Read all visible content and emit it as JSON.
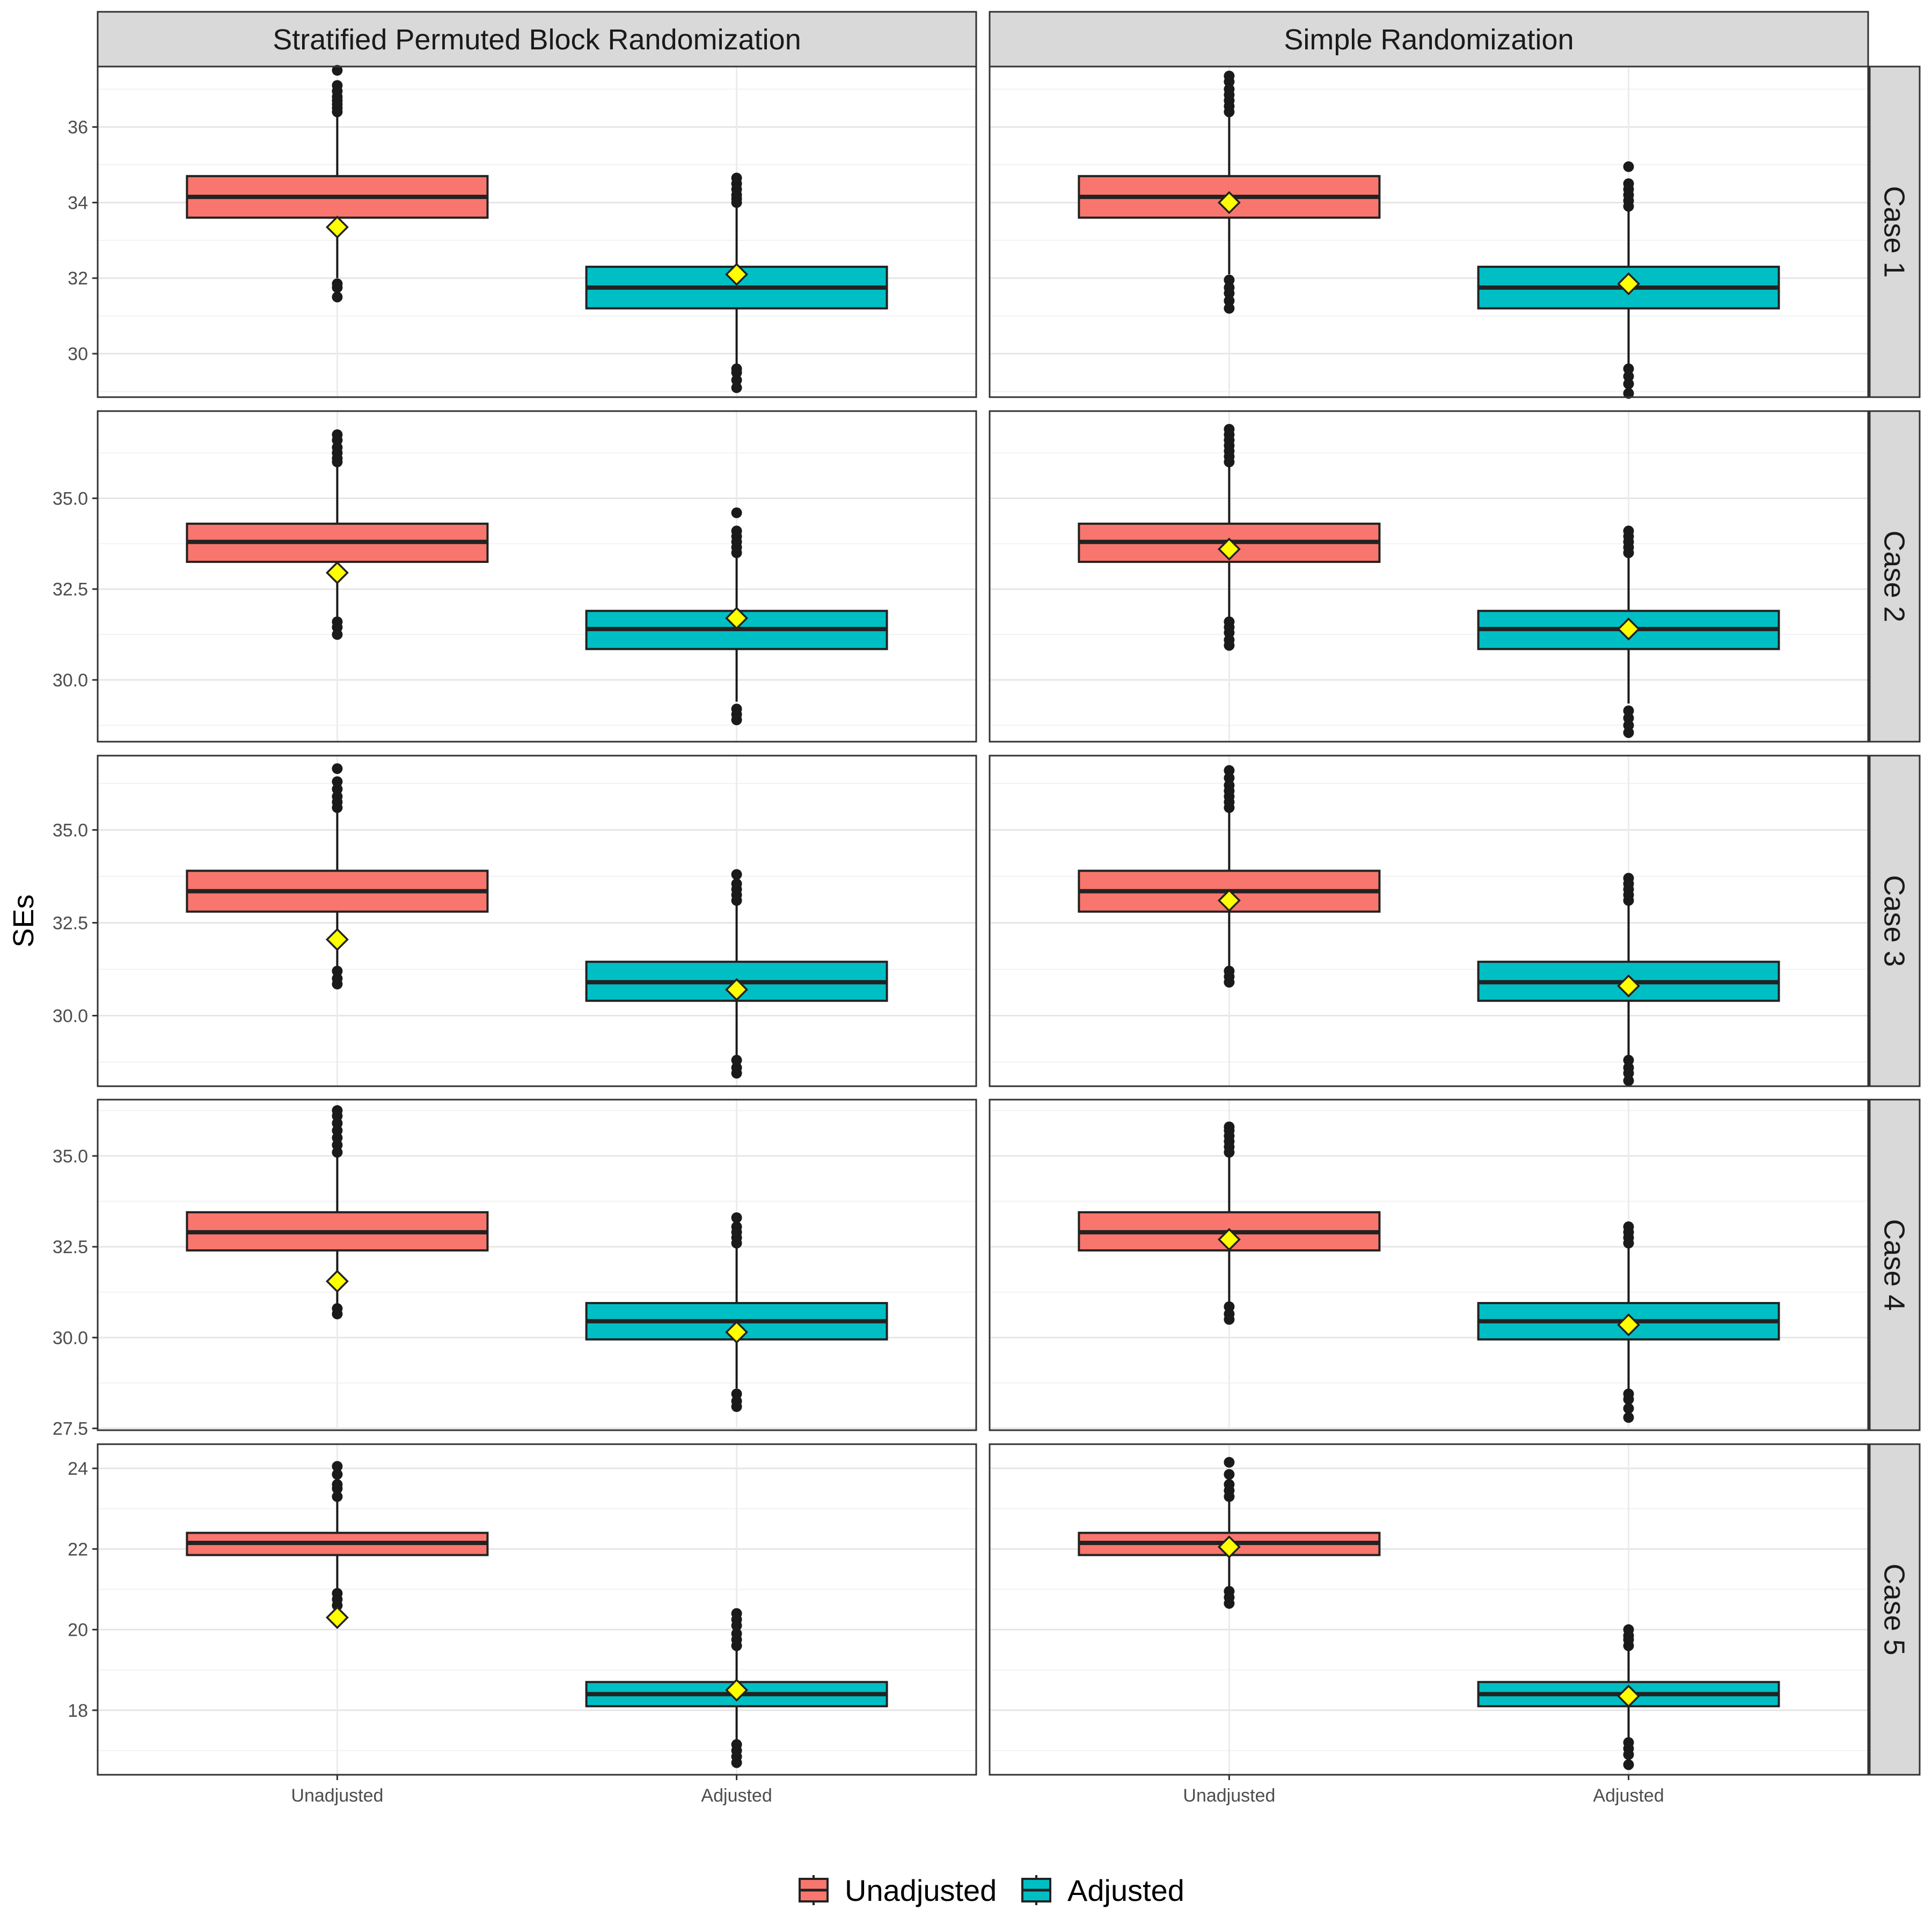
{
  "chart_data": {
    "type": "boxplot",
    "ylabel": "SEs",
    "columns": [
      "Stratified Permuted Block Randomization",
      "Simple Randomization"
    ],
    "rows": [
      "Case 1",
      "Case 2",
      "Case 3",
      "Case 4",
      "Case 5"
    ],
    "categories": [
      "Unadjusted",
      "Adjusted"
    ],
    "legend": {
      "position": "bottom",
      "entries": [
        {
          "label": "Unadjusted",
          "color": "#F8766D"
        },
        {
          "label": "Adjusted",
          "color": "#00BFC4"
        }
      ]
    },
    "colors": {
      "Unadjusted": "#F8766D",
      "Adjusted": "#00BFC4",
      "mean_marker": "#FFFF00"
    },
    "mean_marker": "diamond",
    "grid": true,
    "scales": [
      {
        "ylim": [
          28.85,
          37.6
        ],
        "ticks": [
          30,
          32,
          34,
          36
        ],
        "tick_labels": [
          "30",
          "32",
          "34",
          "36"
        ]
      },
      {
        "ylim": [
          28.3,
          37.4
        ],
        "ticks": [
          30,
          32.5,
          35
        ],
        "tick_labels": [
          "30.0",
          "32.5",
          "35.0"
        ]
      },
      {
        "ylim": [
          28.1,
          37.0
        ],
        "ticks": [
          30,
          32.5,
          35
        ],
        "tick_labels": [
          "30.0",
          "32.5",
          "35.0"
        ]
      },
      {
        "ylim": [
          27.45,
          36.55
        ],
        "ticks": [
          27.5,
          30,
          32.5,
          35
        ],
        "tick_labels": [
          "27.5",
          "30.0",
          "32.5",
          "35.0"
        ]
      },
      {
        "ylim": [
          16.4,
          24.6
        ],
        "ticks": [
          18,
          20,
          22,
          24
        ],
        "tick_labels": [
          "18",
          "20",
          "22",
          "24"
        ]
      }
    ],
    "panels": [
      {
        "col": 0,
        "row": 0,
        "boxes": [
          {
            "category": "Unadjusted",
            "q1": 33.6,
            "median": 34.15,
            "q3": 34.7,
            "whisker_low": 32.0,
            "whisker_high": 36.3,
            "mean": 33.35,
            "outliers": [
              31.5,
              31.75,
              31.85,
              36.4,
              36.5,
              36.6,
              36.7,
              36.8,
              36.95,
              37.1,
              37.5
            ]
          },
          {
            "category": "Adjusted",
            "q1": 31.2,
            "median": 31.75,
            "q3": 32.3,
            "whisker_low": 29.7,
            "whisker_high": 33.9,
            "mean": 32.1,
            "outliers": [
              29.1,
              29.3,
              29.5,
              29.6,
              34.0,
              34.1,
              34.2,
              34.35,
              34.5,
              34.65
            ]
          }
        ]
      },
      {
        "col": 1,
        "row": 0,
        "boxes": [
          {
            "category": "Unadjusted",
            "q1": 33.6,
            "median": 34.15,
            "q3": 34.7,
            "whisker_low": 32.1,
            "whisker_high": 36.3,
            "mean": 34.0,
            "outliers": [
              31.2,
              31.4,
              31.6,
              31.75,
              31.95,
              36.4,
              36.55,
              36.7,
              36.85,
              37.0,
              37.2,
              37.35
            ]
          },
          {
            "category": "Adjusted",
            "q1": 31.2,
            "median": 31.75,
            "q3": 32.3,
            "whisker_low": 29.7,
            "whisker_high": 33.8,
            "mean": 31.85,
            "outliers": [
              28.95,
              29.2,
              29.4,
              29.6,
              33.9,
              34.05,
              34.2,
              34.35,
              34.5,
              34.95
            ]
          }
        ]
      },
      {
        "col": 0,
        "row": 1,
        "boxes": [
          {
            "category": "Unadjusted",
            "q1": 33.25,
            "median": 33.8,
            "q3": 34.3,
            "whisker_low": 31.7,
            "whisker_high": 35.9,
            "mean": 32.95,
            "outliers": [
              31.25,
              31.45,
              31.6,
              36.0,
              36.1,
              36.25,
              36.4,
              36.6,
              36.75
            ]
          },
          {
            "category": "Adjusted",
            "q1": 30.85,
            "median": 31.4,
            "q3": 31.9,
            "whisker_low": 29.4,
            "whisker_high": 33.4,
            "mean": 31.7,
            "outliers": [
              28.9,
              29.05,
              29.2,
              33.5,
              33.65,
              33.8,
              33.95,
              34.1,
              34.6
            ]
          }
        ]
      },
      {
        "col": 1,
        "row": 1,
        "boxes": [
          {
            "category": "Unadjusted",
            "q1": 33.25,
            "median": 33.8,
            "q3": 34.3,
            "whisker_low": 31.7,
            "whisker_high": 35.9,
            "mean": 33.6,
            "outliers": [
              30.95,
              31.1,
              31.3,
              31.45,
              31.6,
              36.0,
              36.15,
              36.3,
              36.45,
              36.6,
              36.75,
              36.9
            ]
          },
          {
            "category": "Adjusted",
            "q1": 30.85,
            "median": 31.4,
            "q3": 31.9,
            "whisker_low": 29.35,
            "whisker_high": 33.4,
            "mean": 31.4,
            "outliers": [
              28.55,
              28.75,
              28.95,
              29.15,
              33.5,
              33.65,
              33.8,
              33.95,
              34.1
            ]
          }
        ]
      },
      {
        "col": 0,
        "row": 2,
        "boxes": [
          {
            "category": "Unadjusted",
            "q1": 32.8,
            "median": 33.35,
            "q3": 33.9,
            "whisker_low": 31.3,
            "whisker_high": 35.5,
            "mean": 32.05,
            "outliers": [
              30.85,
              31.0,
              31.2,
              35.6,
              35.75,
              35.9,
              36.1,
              36.3,
              36.65
            ]
          },
          {
            "category": "Adjusted",
            "q1": 30.4,
            "median": 30.9,
            "q3": 31.45,
            "whisker_low": 28.9,
            "whisker_high": 33.0,
            "mean": 30.7,
            "outliers": [
              28.45,
              28.6,
              28.8,
              33.1,
              33.25,
              33.4,
              33.55,
              33.8
            ]
          }
        ]
      },
      {
        "col": 1,
        "row": 2,
        "boxes": [
          {
            "category": "Unadjusted",
            "q1": 32.8,
            "median": 33.35,
            "q3": 33.9,
            "whisker_low": 31.3,
            "whisker_high": 35.5,
            "mean": 33.1,
            "outliers": [
              30.9,
              31.05,
              31.2,
              35.6,
              35.75,
              35.9,
              36.05,
              36.2,
              36.4,
              36.6
            ]
          },
          {
            "category": "Adjusted",
            "q1": 30.4,
            "median": 30.9,
            "q3": 31.45,
            "whisker_low": 28.9,
            "whisker_high": 33.0,
            "mean": 30.8,
            "outliers": [
              28.25,
              28.45,
              28.6,
              28.8,
              33.1,
              33.25,
              33.4,
              33.55,
              33.7
            ]
          }
        ]
      },
      {
        "col": 0,
        "row": 3,
        "boxes": [
          {
            "category": "Unadjusted",
            "q1": 32.4,
            "median": 32.9,
            "q3": 33.45,
            "whisker_low": 30.9,
            "whisker_high": 35.0,
            "mean": 31.55,
            "outliers": [
              30.65,
              30.8,
              35.1,
              35.3,
              35.5,
              35.7,
              35.9,
              36.1,
              36.25
            ]
          },
          {
            "category": "Adjusted",
            "q1": 29.95,
            "median": 30.45,
            "q3": 30.95,
            "whisker_low": 28.6,
            "whisker_high": 32.5,
            "mean": 30.15,
            "outliers": [
              28.1,
              28.25,
              28.45,
              32.6,
              32.75,
              32.9,
              33.05,
              33.3
            ]
          }
        ]
      },
      {
        "col": 1,
        "row": 3,
        "boxes": [
          {
            "category": "Unadjusted",
            "q1": 32.4,
            "median": 32.9,
            "q3": 33.45,
            "whisker_low": 30.9,
            "whisker_high": 35.0,
            "mean": 32.7,
            "outliers": [
              30.5,
              30.65,
              30.85,
              35.1,
              35.25,
              35.4,
              35.55,
              35.7,
              35.8
            ]
          },
          {
            "category": "Adjusted",
            "q1": 29.95,
            "median": 30.45,
            "q3": 30.95,
            "whisker_low": 28.5,
            "whisker_high": 32.5,
            "mean": 30.35,
            "outliers": [
              27.8,
              28.05,
              28.3,
              28.45,
              32.6,
              32.75,
              32.9,
              33.05
            ]
          }
        ]
      },
      {
        "col": 0,
        "row": 4,
        "boxes": [
          {
            "category": "Unadjusted",
            "q1": 21.85,
            "median": 22.15,
            "q3": 22.4,
            "whisker_low": 21.0,
            "whisker_high": 23.2,
            "mean": 20.3,
            "outliers": [
              20.6,
              20.75,
              20.9,
              23.3,
              23.5,
              23.6,
              23.85,
              24.05
            ]
          },
          {
            "category": "Adjusted",
            "q1": 18.1,
            "median": 18.4,
            "q3": 18.7,
            "whisker_low": 17.2,
            "whisker_high": 19.5,
            "mean": 18.5,
            "outliers": [
              16.7,
              16.85,
              17.0,
              17.15,
              19.6,
              19.75,
              19.9,
              20.1,
              20.25,
              20.4
            ]
          }
        ]
      },
      {
        "col": 1,
        "row": 4,
        "boxes": [
          {
            "category": "Unadjusted",
            "q1": 21.85,
            "median": 22.15,
            "q3": 22.4,
            "whisker_low": 21.0,
            "whisker_high": 23.2,
            "mean": 22.05,
            "outliers": [
              20.65,
              20.8,
              20.95,
              23.3,
              23.45,
              23.6,
              23.85,
              24.15
            ]
          },
          {
            "category": "Adjusted",
            "q1": 18.1,
            "median": 18.4,
            "q3": 18.7,
            "whisker_low": 17.3,
            "whisker_high": 19.5,
            "mean": 18.35,
            "outliers": [
              16.65,
              16.9,
              17.05,
              17.2,
              19.6,
              19.75,
              19.85,
              20.0
            ]
          }
        ]
      }
    ]
  }
}
